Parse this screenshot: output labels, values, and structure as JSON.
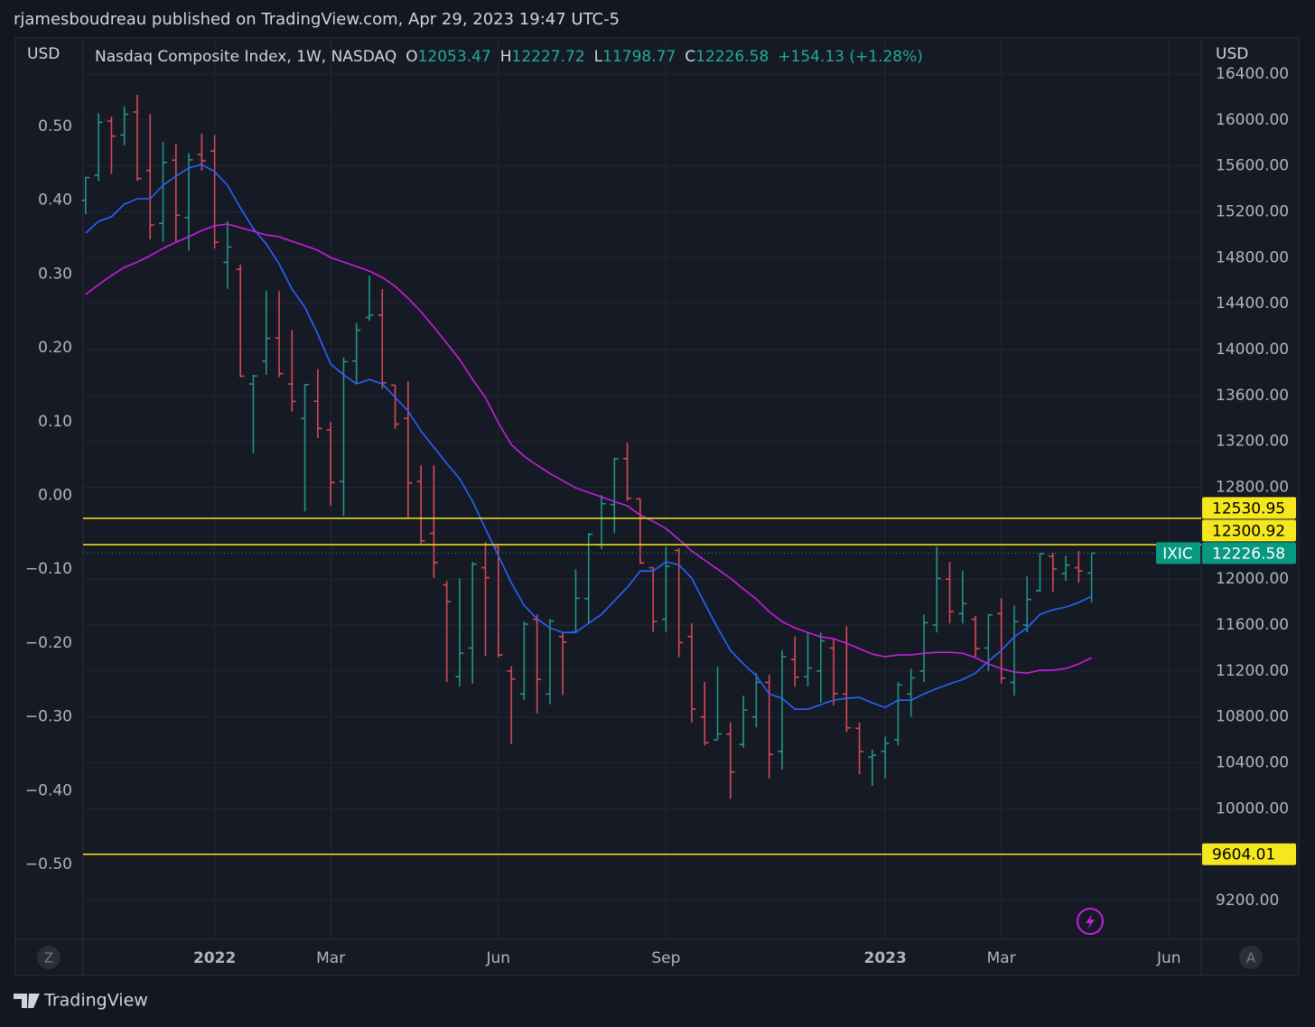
{
  "header": {
    "text": "rjamesboudreau published on TradingView.com, Apr 29, 2023 19:47 UTC-5"
  },
  "controls": {
    "left": "Z",
    "right": "A"
  },
  "footer": {
    "brand": "TradingView"
  },
  "chart_data": {
    "type": "ohlc",
    "title": "Nasdaq Composite Index, 1W, NASDAQ",
    "ohlc_labels": [
      "O",
      "H",
      "L",
      "C"
    ],
    "change": "+154.13 (+1.28%)",
    "symbol": "IXIC",
    "y_label": "USD",
    "y2_label": "USD",
    "up_color": "#22ab94",
    "down_color": "#f7525f",
    "open": [
      15300,
      15520,
      15990,
      15870,
      16070,
      15560,
      15100,
      15650,
      15150,
      15700,
      15730,
      14760,
      14700,
      13700,
      13900,
      14100,
      13700,
      13400,
      13550,
      13300,
      12850,
      13900,
      14280,
      14300,
      13690,
      13400,
      12850,
      12400,
      11950,
      11150,
      11400,
      12100,
      12280,
      11200,
      11000,
      11650,
      11000,
      11500,
      11540,
      11830,
      12300,
      12650,
      13050,
      12700,
      12100,
      11650,
      12250,
      11500,
      10800,
      10600,
      10650,
      10560,
      10800,
      11100,
      10500,
      11300,
      11150,
      11200,
      11400,
      11000,
      10700,
      10450,
      10500,
      10600,
      11000,
      11200,
      11600,
      12000,
      11700,
      11650,
      11400,
      11700,
      11100,
      11600,
      11900,
      12200,
      12050,
      12100,
      12053.47
    ],
    "high": [
      15505,
      16060,
      16030,
      16120,
      16220,
      16050,
      15810,
      15790,
      15710,
      15880,
      15870,
      15120,
      14740,
      13780,
      14510,
      14510,
      14170,
      13700,
      13830,
      13370,
      13930,
      14230,
      14645,
      14527,
      13690,
      13724,
      12992,
      12992,
      11985,
      12008,
      12150,
      12323,
      12290,
      11240,
      11631,
      11693,
      11654,
      11540,
      12087,
      12400,
      12732,
      13060,
      13190,
      12700,
      12103,
      12283,
      12270,
      11615,
      11104,
      11237,
      10750,
      10985,
      11182,
      11166,
      11380,
      11500,
      11536,
      11536,
      11480,
      11590,
      10750,
      10515,
      10630,
      11104,
      11221,
      11693,
      12283,
      12150,
      12071,
      11680,
      11693,
      11835,
      11772,
      12024,
      12229,
      12229,
      12205,
      12245,
      12227.72
    ],
    "low": [
      15180,
      15470,
      15530,
      15780,
      15470,
      14960,
      14940,
      14940,
      14860,
      15560,
      14880,
      14530,
      13760,
      13095,
      13780,
      13760,
      13460,
      12590,
      13230,
      12640,
      12550,
      13700,
      14250,
      13660,
      13310,
      12530,
      12310,
      12010,
      11105,
      11065,
      11090,
      11330,
      11320,
      10565,
      10950,
      10830,
      10910,
      10990,
      11540,
      11620,
      12260,
      12400,
      12680,
      12130,
      11540,
      11540,
      11320,
      10750,
      10552,
      10600,
      10088,
      10530,
      10710,
      10265,
      10340,
      11065,
      11065,
      10925,
      10900,
      10670,
      10300,
      10200,
      10265,
      10552,
      10800,
      11104,
      11536,
      11615,
      11615,
      11325,
      11200,
      11090,
      10985,
      11536,
      11890,
      11890,
      11985,
      11970,
      11798.77
    ],
    "close": [
      15498,
      15980,
      15860,
      16050,
      15490,
      15085,
      15630,
      15170,
      15653,
      15645,
      14935,
      14893,
      13768,
      13770,
      14098,
      13791,
      13548,
      13694,
      13313,
      12843,
      13894,
      14169,
      14300,
      13711,
      13351,
      12839,
      12335,
      12145,
      11805,
      11355,
      12131,
      12013,
      11340,
      11130,
      11608,
      11128,
      11635,
      11452,
      11834,
      12391,
      12657,
      13048,
      12705,
      12142,
      11631,
      12112,
      11448,
      10868,
      10576,
      10652,
      10321,
      10860,
      11102,
      10475,
      11324,
      11146,
      11226,
      11461,
      11004,
      10705,
      10497,
      10466,
      10569,
      11079,
      11140,
      11621,
      12006,
      11718,
      11787,
      11395,
      11689,
      11138,
      11630,
      11823,
      12222,
      12088,
      12123,
      12072,
      12226.58
    ],
    "series": [
      {
        "color": "#2962ff",
        "values": [
          15015,
          15117,
          15157,
          15267,
          15314,
          15314,
          15432,
          15511,
          15582,
          15613,
          15550,
          15432,
          15235,
          15054,
          14920,
          14747,
          14527,
          14370,
          14134,
          13874,
          13780,
          13701,
          13740,
          13701,
          13583,
          13465,
          13291,
          13150,
          13008,
          12874,
          12678,
          12441,
          12205,
          11969,
          11772,
          11654,
          11575,
          11536,
          11536,
          11615,
          11693,
          11811,
          11929,
          12071,
          12071,
          12150,
          12126,
          12008,
          11788,
          11576,
          11379,
          11261,
          11159,
          11001,
          10962,
          10867,
          10867,
          10907,
          10946,
          10962,
          10970,
          10922,
          10883,
          10946,
          10946,
          11001,
          11048,
          11088,
          11127,
          11182,
          11285,
          11379,
          11497,
          11575,
          11693,
          11733,
          11757,
          11796,
          11851
        ]
      },
      {
        "color": "#c71fe0",
        "values": [
          14480,
          14566,
          14645,
          14716,
          14763,
          14818,
          14881,
          14936,
          14983,
          15038,
          15078,
          15094,
          15062,
          15031,
          14999,
          14983,
          14944,
          14905,
          14865,
          14802,
          14763,
          14724,
          14684,
          14629,
          14551,
          14448,
          14330,
          14196,
          14055,
          13913,
          13740,
          13583,
          13362,
          13173,
          13071,
          12992,
          12921,
          12858,
          12795,
          12756,
          12716,
          12677,
          12638,
          12559,
          12504,
          12441,
          12346,
          12244,
          12166,
          12087,
          12008,
          11914,
          11827,
          11717,
          11631,
          11576,
          11536,
          11497,
          11481,
          11442,
          11395,
          11347,
          11324,
          11340,
          11340,
          11355,
          11363,
          11363,
          11355,
          11316,
          11261,
          11222,
          11190,
          11182,
          11206,
          11206,
          11222,
          11261,
          11316
        ]
      }
    ],
    "hlines": [
      12530.95,
      12300.92,
      9604.01
    ],
    "hline_color": "#f5e71d",
    "last_color": "#089981",
    "xlim": [
      -0.2,
      86.5
    ],
    "xticks": [
      {
        "value": 10,
        "label": "2022"
      },
      {
        "value": 19,
        "label": "Mar"
      },
      {
        "value": 32,
        "label": "Jun"
      },
      {
        "value": 45,
        "label": "Sep"
      },
      {
        "value": 62,
        "label": "2023"
      },
      {
        "value": 71,
        "label": "Mar"
      },
      {
        "value": 84,
        "label": "Jun"
      }
    ],
    "ylim": [
      8862,
      16715
    ],
    "yticks": [
      {
        "value": 16400,
        "label": "16400.00"
      },
      {
        "value": 16000,
        "label": "16000.00"
      },
      {
        "value": 15600,
        "label": "15600.00"
      },
      {
        "value": 15200,
        "label": "15200.00"
      },
      {
        "value": 14800,
        "label": "14800.00"
      },
      {
        "value": 14400,
        "label": "14400.00"
      },
      {
        "value": 14000,
        "label": "14000.00"
      },
      {
        "value": 13600,
        "label": "13600.00"
      },
      {
        "value": 13200,
        "label": "13200.00"
      },
      {
        "value": 12800,
        "label": "12800.00"
      },
      {
        "value": 12000,
        "label": "12000.00"
      },
      {
        "value": 11600,
        "label": "11600.00"
      },
      {
        "value": 11200,
        "label": "11200.00"
      },
      {
        "value": 10800,
        "label": "10800.00"
      },
      {
        "value": 10400,
        "label": "10400.00"
      },
      {
        "value": 10000,
        "label": "10000.00"
      },
      {
        "value": 9200,
        "label": "9200.00"
      }
    ],
    "y2lim": [
      -0.6016,
      0.62
    ],
    "y2ticks": [
      {
        "value": 0.5,
        "label": "0.50"
      },
      {
        "value": 0.4,
        "label": "0.40"
      },
      {
        "value": 0.3,
        "label": "0.30"
      },
      {
        "value": 0.2,
        "label": "0.20"
      },
      {
        "value": 0.1,
        "label": "0.10"
      },
      {
        "value": 0,
        "label": "0.00"
      },
      {
        "value": -0.1,
        "label": "−0.10"
      },
      {
        "value": -0.2,
        "label": "−0.20"
      },
      {
        "value": -0.3,
        "label": "−0.30"
      },
      {
        "value": -0.4,
        "label": "−0.40"
      },
      {
        "value": -0.5,
        "label": "−0.50"
      }
    ],
    "grid": true
  }
}
